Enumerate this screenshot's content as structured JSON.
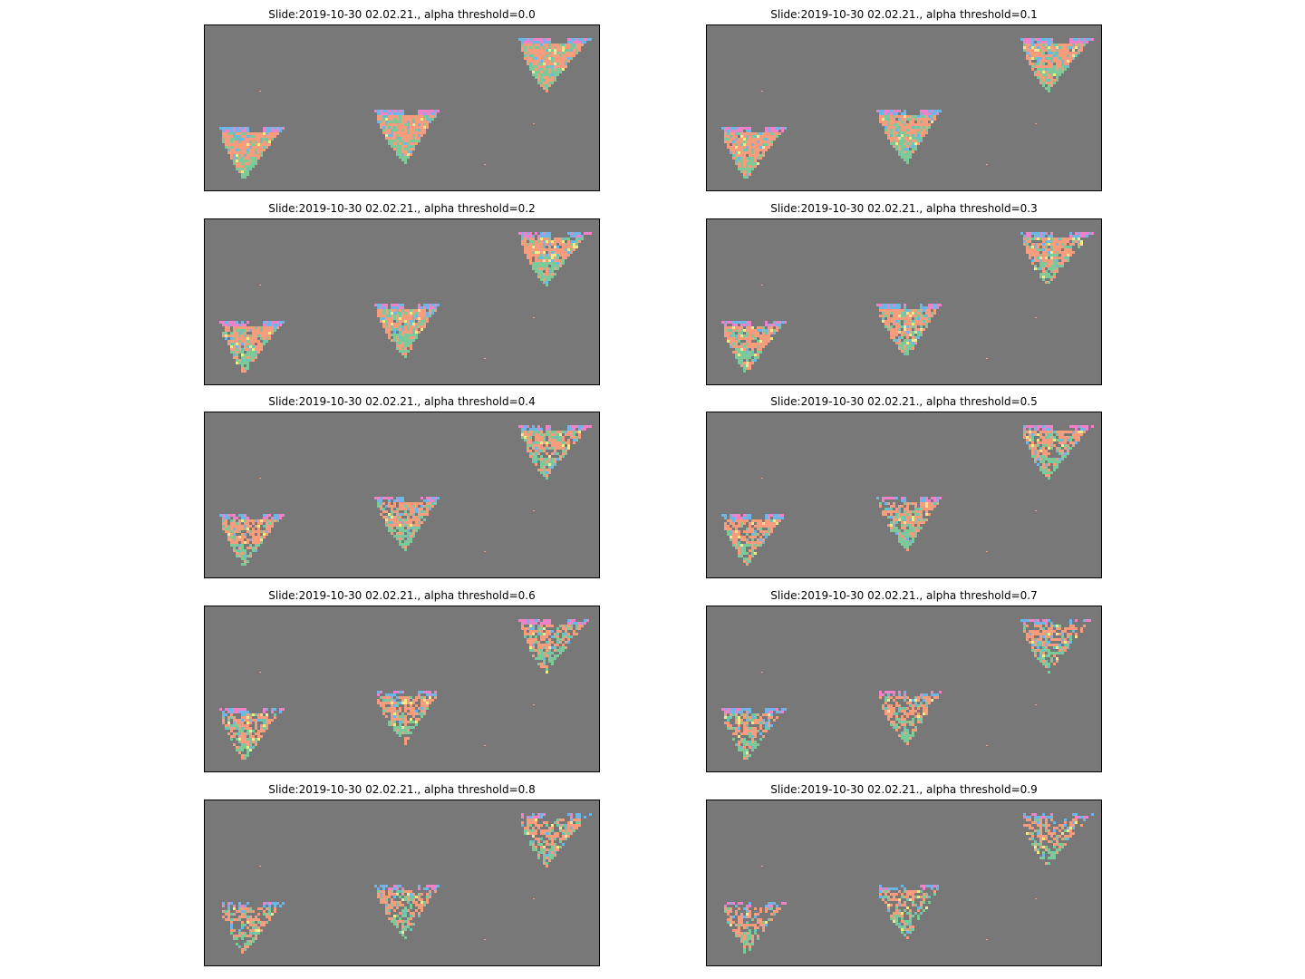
{
  "figure": {
    "background": "#ffffff",
    "image_background": "#787878",
    "cluster_colors": [
      "#f79d7d",
      "#7ec99a",
      "#6fb6e8",
      "#f2e98a",
      "#ef82c9",
      "#6bc6b1"
    ]
  },
  "panels": [
    {
      "title": "Slide:2019-10-30 02.02.21., alpha threshold=0.0",
      "alpha_threshold": 0.0
    },
    {
      "title": "Slide:2019-10-30 02.02.21., alpha threshold=0.1",
      "alpha_threshold": 0.1
    },
    {
      "title": "Slide:2019-10-30 02.02.21., alpha threshold=0.2",
      "alpha_threshold": 0.2
    },
    {
      "title": "Slide:2019-10-30 02.02.21., alpha threshold=0.3",
      "alpha_threshold": 0.3
    },
    {
      "title": "Slide:2019-10-30 02.02.21., alpha threshold=0.4",
      "alpha_threshold": 0.4
    },
    {
      "title": "Slide:2019-10-30 02.02.21., alpha threshold=0.5",
      "alpha_threshold": 0.5
    },
    {
      "title": "Slide:2019-10-30 02.02.21., alpha threshold=0.6",
      "alpha_threshold": 0.6
    },
    {
      "title": "Slide:2019-10-30 02.02.21., alpha threshold=0.7",
      "alpha_threshold": 0.7
    },
    {
      "title": "Slide:2019-10-30 02.02.21., alpha threshold=0.8",
      "alpha_threshold": 0.8
    },
    {
      "title": "Slide:2019-10-30 02.02.21., alpha threshold=0.9",
      "alpha_threshold": 0.9
    }
  ]
}
